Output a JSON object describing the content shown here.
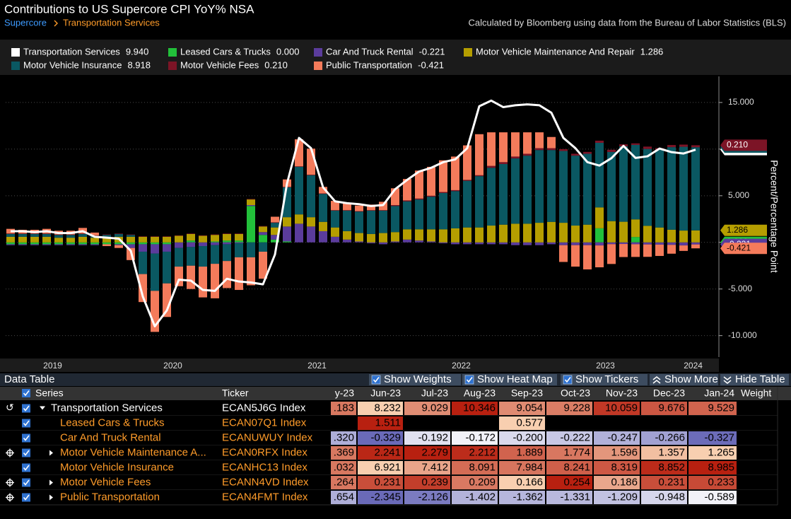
{
  "header": {
    "title": "Contributions to US Supercore CPI YoY% NSA",
    "breadcrumb": [
      "Supercore",
      "Transportation Services"
    ],
    "source": "Calculated by Bloomberg using data from the Bureau of Labor Statistics (BLS)"
  },
  "chart_data": {
    "type": "bar",
    "y_label": "Percent/Percentage Point",
    "categories": [
      null,
      null,
      null,
      null,
      null,
      null,
      null,
      null,
      null,
      null,
      null,
      null,
      null,
      null,
      null,
      null,
      null,
      null,
      null,
      null,
      null,
      null,
      null,
      null,
      null,
      null,
      null,
      null,
      null,
      null,
      null,
      null,
      null,
      null,
      null,
      null,
      null,
      null,
      null,
      null,
      null,
      null,
      null,
      null,
      null,
      null,
      null,
      null,
      null,
      null,
      null,
      null,
      null,
      null,
      null,
      null,
      null,
      null
    ],
    "xticks": [
      {
        "value": 3.5,
        "label": "2019"
      },
      {
        "value": 13.5,
        "label": "2020"
      },
      {
        "value": 25.5,
        "label": "2021"
      },
      {
        "value": 37.5,
        "label": "2022"
      },
      {
        "value": 49.5,
        "label": "2023"
      },
      {
        "value": 56.8,
        "label": "2024"
      }
    ],
    "ylim": [
      -12.3,
      17.8
    ],
    "yticks": [
      {
        "value": 15,
        "label": "15.000"
      },
      {
        "value": 10,
        "label": "10.000"
      },
      {
        "value": 5,
        "label": "5.000"
      },
      {
        "value": 0,
        "label": "0.000"
      },
      {
        "value": -5,
        "label": "-5.000"
      },
      {
        "value": -10,
        "label": "-10.000"
      }
    ],
    "grid": true,
    "series": [
      {
        "name": "Transportation Services",
        "type": "line",
        "color": "#ffffff",
        "last_label": "9.940",
        "values": [
          1.2,
          1.2,
          1.1,
          1.2,
          1.0,
          1.0,
          1.2,
          0.6,
          0.5,
          0.4,
          -0.9,
          -5.8,
          -9.0,
          -7.3,
          -4.0,
          -4.1,
          -5.1,
          -5.2,
          -3.9,
          -4.2,
          -4.3,
          -4.5,
          -1.3,
          6.3,
          11.2,
          10.1,
          5.9,
          4.4,
          4.2,
          4.1,
          3.9,
          4.0,
          5.7,
          6.7,
          7.6,
          8.0,
          8.6,
          8.9,
          10.1,
          14.6,
          15.2,
          14.5,
          14.7,
          14.8,
          14.7,
          13.9,
          11.2,
          10.1,
          8.6,
          8.232,
          9.029,
          10.346,
          9.054,
          9.228,
          10.059,
          9.676,
          9.529,
          9.94
        ]
      },
      {
        "name": "Leased Cars & Trucks",
        "color": "#22c03a",
        "last_label": "0.000",
        "values": [
          -0.2,
          -0.2,
          -0.2,
          -0.2,
          -0.2,
          -0.2,
          -0.2,
          -0.2,
          -0.2,
          -0.2,
          -0.2,
          -0.2,
          -0.2,
          -0.2,
          0,
          0.2,
          0,
          0.1,
          0.2,
          0.2,
          3.9,
          0.8,
          0.3,
          0.1,
          0,
          0,
          0,
          0,
          0,
          0,
          0,
          0,
          0,
          0,
          0,
          0,
          0,
          0,
          0,
          0,
          0,
          0,
          0,
          0,
          0,
          0,
          0,
          0,
          0,
          1.511,
          0,
          0,
          0.577,
          0,
          0,
          0,
          0,
          0
        ]
      },
      {
        "name": "Car And Truck Rental",
        "color": "#5b3c9c",
        "last_label": "-0.221",
        "values": [
          -0.1,
          -0.1,
          -0.1,
          -0.1,
          -0.1,
          -0.1,
          -0.1,
          -0.1,
          0,
          -0.1,
          -0.4,
          -0.8,
          -1.0,
          -0.8,
          -0.6,
          -0.5,
          -0.4,
          -0.3,
          -0.2,
          -0.1,
          0.1,
          0.3,
          0.5,
          1.6,
          2.0,
          1.7,
          1.2,
          0.6,
          0.3,
          0.1,
          -0.1,
          -0.2,
          0.1,
          0.3,
          0.2,
          0.1,
          -0.1,
          -0.2,
          -0.2,
          -0.2,
          -0.2,
          -0.2,
          -0.3,
          -0.3,
          -0.3,
          -0.2,
          -0.3,
          -0.3,
          -0.3,
          -0.329,
          -0.192,
          -0.172,
          -0.2,
          -0.222,
          -0.247,
          -0.266,
          -0.327,
          -0.221
        ]
      },
      {
        "name": "Motor Vehicle Maintenance And Repair",
        "color": "#b59e00",
        "last_label": "1.286",
        "values": [
          0.6,
          0.6,
          0.6,
          0.6,
          0.5,
          0.5,
          0.6,
          0.5,
          0.5,
          0.6,
          0.6,
          0.6,
          0.6,
          0.6,
          0.7,
          0.7,
          0.7,
          0.7,
          0.7,
          0.7,
          0.6,
          0.6,
          0.8,
          1.0,
          1.0,
          1.0,
          1.0,
          1.0,
          0.9,
          0.9,
          0.9,
          1.0,
          1.0,
          1.1,
          1.2,
          1.3,
          1.4,
          1.5,
          1.6,
          1.6,
          1.8,
          1.9,
          2.0,
          2.0,
          2.1,
          2.2,
          2.1,
          1.8,
          1.9,
          2.241,
          2.279,
          2.212,
          1.889,
          1.774,
          1.596,
          1.357,
          1.265,
          1.286
        ]
      },
      {
        "name": "Motor Vehicle Insurance",
        "color": "#0a5862",
        "last_label": "8.918",
        "values": [
          0.3,
          0.3,
          0.3,
          0.3,
          0.3,
          0.3,
          0.3,
          0.2,
          0.3,
          0.3,
          0.2,
          -2.4,
          -4.0,
          -3.4,
          -2.0,
          -2.0,
          -2.2,
          -2.0,
          -1.8,
          -1.5,
          -1.6,
          -1.0,
          0.5,
          3.2,
          5.1,
          4.5,
          3.0,
          1.8,
          2.2,
          2.3,
          2.5,
          2.4,
          2.8,
          3.0,
          3.2,
          3.5,
          3.9,
          4.0,
          5.0,
          5.5,
          6.2,
          6.5,
          7.0,
          7.3,
          7.8,
          7.7,
          7.7,
          7.5,
          7.6,
          6.921,
          7.412,
          8.091,
          7.984,
          8.241,
          8.319,
          8.852,
          8.985,
          8.918
        ]
      },
      {
        "name": "Motor Vehicle Fees",
        "color": "#7c1426",
        "last_label": "0.210",
        "values": [
          0.05,
          0.05,
          0.05,
          0.05,
          0.05,
          0.05,
          0.05,
          0.05,
          0.05,
          0.05,
          0.05,
          0.05,
          0.05,
          0.05,
          0.05,
          0.05,
          0.05,
          0.05,
          0.05,
          0.05,
          0.05,
          0.05,
          0.05,
          0.05,
          0.05,
          0.05,
          0.05,
          0.05,
          0.05,
          0.05,
          0.05,
          0.05,
          0.1,
          0.1,
          0.1,
          0.1,
          0.1,
          0.1,
          0.1,
          0.1,
          0.2,
          0.2,
          0.2,
          0.2,
          0.2,
          0.2,
          0.2,
          0.2,
          0.2,
          0.231,
          0.239,
          0.209,
          0.166,
          0.254,
          0.186,
          0.231,
          0.233,
          0.21
        ]
      },
      {
        "name": "Public Transportation",
        "color": "#f47b5b",
        "last_label": "-0.421",
        "values": [
          0.5,
          0.4,
          0.4,
          0.5,
          0.4,
          0.4,
          0.6,
          0.3,
          -0.2,
          -0.3,
          -1.3,
          -3.0,
          -4.4,
          -3.6,
          -2.1,
          -2.5,
          -3.3,
          -3.7,
          -2.9,
          -3.5,
          -3.0,
          -2.9,
          0.6,
          0.8,
          2.9,
          2.8,
          0.7,
          1.0,
          0.8,
          0.6,
          0.6,
          0.9,
          1.8,
          2.3,
          3.0,
          3.1,
          3.4,
          3.6,
          3.7,
          4.4,
          3.6,
          3.2,
          2.6,
          2.3,
          1.7,
          1.2,
          -1.8,
          -2.3,
          -2.6,
          -2.345,
          -2.126,
          -1.402,
          -1.362,
          -1.331,
          -1.209,
          -0.948,
          -0.589,
          -0.421
        ]
      }
    ]
  },
  "table": {
    "title": "Data Table",
    "buttons": [
      "Show Weights",
      "Show Heat Map",
      "Show Tickers",
      "Show More",
      "Hide Table"
    ],
    "columns": [
      "Series",
      "Ticker",
      "y-23",
      "Jun-23",
      "Jul-23",
      "Aug-23",
      "Sep-23",
      "Oct-23",
      "Nov-23",
      "Dec-23",
      "Jan-24",
      "Weight"
    ],
    "rows": [
      {
        "name": "Transportation Services",
        "ticker": "ECAN5J6G Index",
        "values": [
          ".183",
          "8.232",
          "9.029",
          "10.346",
          "9.054",
          "9.228",
          "10.059",
          "9.676",
          "9.529"
        ]
      },
      {
        "name": "Leased Cars & Trucks",
        "ticker": "ECAN07Q1 Index",
        "values": [
          null,
          "1.511",
          null,
          null,
          "0.577",
          null,
          null,
          null,
          null
        ]
      },
      {
        "name": "Car And Truck Rental",
        "ticker": "ECANUWUY Index",
        "values": [
          ".320",
          "-0.329",
          "-0.192",
          "-0.172",
          "-0.200",
          "-0.222",
          "-0.247",
          "-0.266",
          "-0.327"
        ]
      },
      {
        "name": "Motor Vehicle Maintenance A...",
        "ticker": "ECAN0RFX Index",
        "values": [
          ".369",
          "2.241",
          "2.279",
          "2.212",
          "1.889",
          "1.774",
          "1.596",
          "1.357",
          "1.265"
        ]
      },
      {
        "name": "Motor Vehicle Insurance",
        "ticker": "ECANHC13 Index",
        "values": [
          ".032",
          "6.921",
          "7.412",
          "8.091",
          "7.984",
          "8.241",
          "8.319",
          "8.852",
          "8.985"
        ]
      },
      {
        "name": "Motor Vehicle Fees",
        "ticker": "ECANN4VD Index",
        "values": [
          ".264",
          "0.231",
          "0.239",
          "0.209",
          "0.166",
          "0.254",
          "0.186",
          "0.231",
          "0.233"
        ]
      },
      {
        "name": "Public Transportation",
        "ticker": "ECAN4FMT Index",
        "values": [
          ".654",
          "-2.345",
          "-2.126",
          "-1.402",
          "-1.362",
          "-1.331",
          "-1.209",
          "-0.948",
          "-0.589"
        ]
      }
    ]
  }
}
